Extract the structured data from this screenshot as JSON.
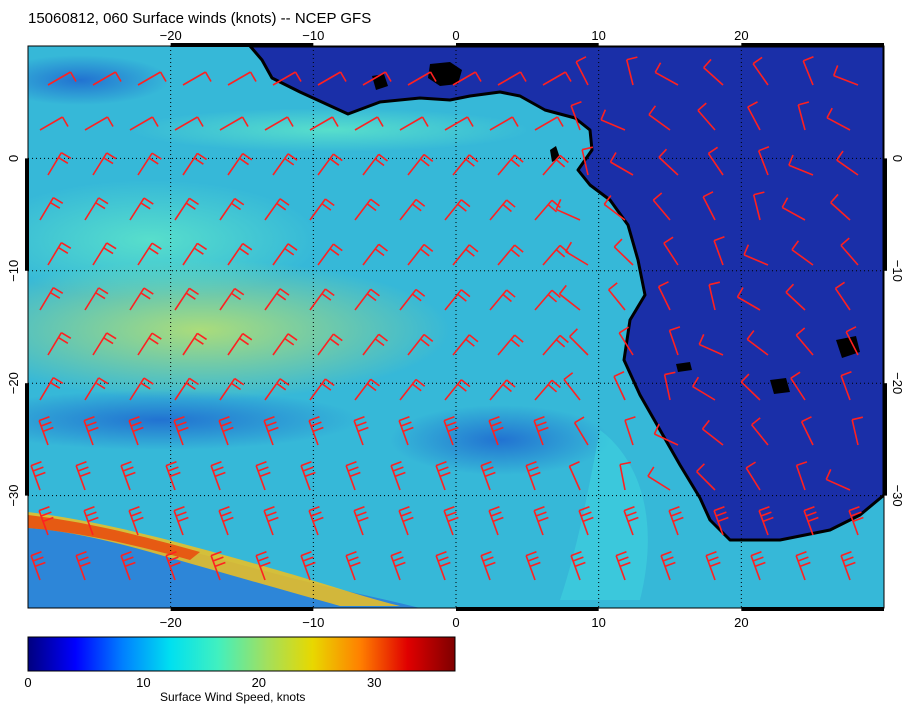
{
  "title": "15060812, 060 Surface winds (knots) -- NCEP GFS",
  "map": {
    "lon_range": [
      -30,
      30
    ],
    "lat_range": [
      -40,
      10
    ],
    "lon_ticks": [
      {
        "value": -20,
        "label": "−20"
      },
      {
        "value": -10,
        "label": "−10"
      },
      {
        "value": 0,
        "label": "0"
      },
      {
        "value": 10,
        "label": "10"
      },
      {
        "value": 20,
        "label": "20"
      }
    ],
    "lat_ticks": [
      {
        "value": 0,
        "label": "0"
      },
      {
        "value": -10,
        "label": "−10"
      },
      {
        "value": -20,
        "label": "−20"
      },
      {
        "value": -30,
        "label": "−30"
      }
    ],
    "grid": true,
    "land_color": "#1a2fa8",
    "ocean_base_color": "#36b8d8",
    "coastline_color": "#000000",
    "barb_color": "#ff2020"
  },
  "colorbar": {
    "range": [
      0,
      37
    ],
    "ticks": [
      {
        "value": 0,
        "label": "0"
      },
      {
        "value": 10,
        "label": "10"
      },
      {
        "value": 20,
        "label": "20"
      },
      {
        "value": 30,
        "label": "30"
      }
    ],
    "label": "Surface Wind Speed, knots",
    "colors": [
      "#00007f",
      "#0000ff",
      "#0080ff",
      "#00e0f0",
      "#40f0c0",
      "#a0e060",
      "#e8d800",
      "#ff8000",
      "#e00000",
      "#7f0000"
    ]
  }
}
